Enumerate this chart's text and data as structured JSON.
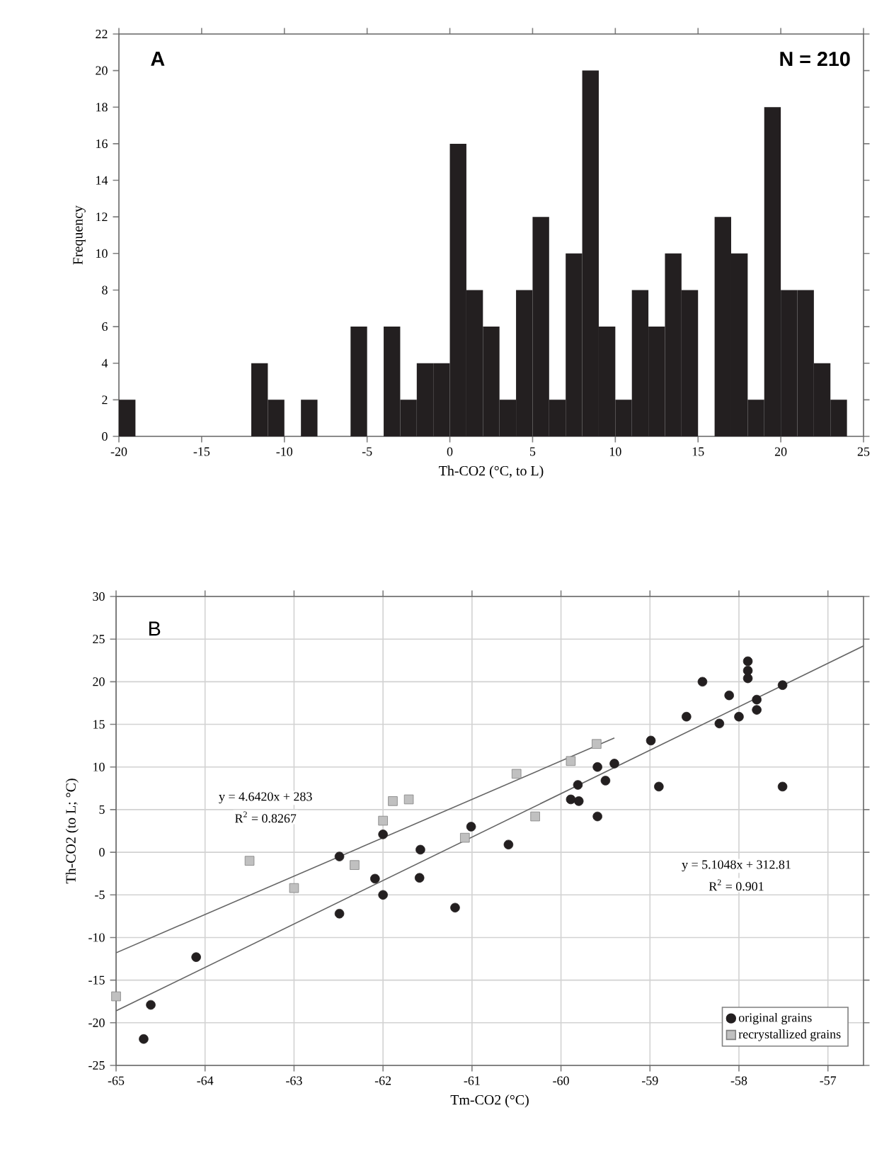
{
  "chart_data": [
    {
      "type": "histogram",
      "xlabel": "Th-CO2 (°C, to L)",
      "ylabel": "Frequency",
      "color": "#231f20",
      "bins": [
        -20,
        -19,
        -18,
        -17,
        -16,
        -15,
        -14,
        -13,
        -12,
        -11,
        -10,
        -9,
        -8,
        -7,
        -6,
        -5,
        -4,
        -3,
        -2,
        -1,
        0,
        1,
        2,
        3,
        4,
        5,
        6,
        7,
        8,
        9,
        10,
        11,
        12,
        13,
        14,
        15,
        16,
        17,
        18,
        19,
        20,
        21,
        22,
        23,
        24,
        25
      ],
      "values": [
        2,
        0,
        0,
        0,
        0,
        0,
        0,
        0,
        4,
        2,
        0,
        2,
        0,
        0,
        6,
        0,
        6,
        2,
        4,
        4,
        16,
        8,
        6,
        2,
        8,
        12,
        2,
        10,
        20,
        6,
        2,
        8,
        6,
        10,
        8,
        0,
        12,
        10,
        2,
        18,
        8,
        8,
        4,
        2,
        0
      ],
      "xlim": [
        -20,
        25
      ],
      "ylim": [
        0,
        22
      ],
      "xticks": [
        -20,
        -15,
        -10,
        -5,
        0,
        5,
        10,
        15,
        20,
        25
      ],
      "yticks": [
        0,
        2,
        4,
        6,
        8,
        10,
        12,
        14,
        16,
        18,
        20,
        22
      ],
      "annotations": [
        "A",
        "N = 210"
      ]
    },
    {
      "type": "scatter",
      "xlabel": "Tm-CO2 (°C)",
      "ylabel": "Th-CO2 (to L; °C)",
      "xlim": [
        -65,
        -56.6
      ],
      "ylim": [
        -25,
        30
      ],
      "xticks": [
        -65,
        -64,
        -63,
        -62,
        -61,
        -60,
        -59,
        -58,
        -57
      ],
      "yticks": [
        -25,
        -20,
        -15,
        -10,
        -5,
        0,
        5,
        10,
        15,
        20,
        25,
        30
      ],
      "grid": true,
      "legend": "bottom right",
      "series": [
        {
          "name": "original grains",
          "type": "scatter",
          "marker": "circle",
          "color": "#231f20",
          "x": [
            -58.41,
            -58.11,
            -57.9,
            -57.9,
            -57.9,
            -57.8,
            -57.8,
            -57.51,
            -58.59,
            -58.22,
            -58.0,
            -58.99,
            -58.9,
            -57.51,
            -59.59,
            -59.4,
            -59.5,
            -59.81,
            -59.89,
            -59.8,
            -59.59,
            -60.59,
            -61.01,
            -61.19,
            -61.58,
            -61.59,
            -62.0,
            -62.09,
            -62.0,
            -62.49,
            -62.49,
            -64.1,
            -64.61,
            -64.69
          ],
          "values": [
            20.0,
            18.4,
            22.4,
            21.3,
            20.4,
            17.9,
            16.7,
            19.6,
            15.9,
            15.1,
            15.9,
            13.1,
            7.7,
            7.7,
            10.0,
            10.4,
            8.4,
            7.9,
            6.2,
            6.0,
            4.2,
            0.9,
            3.0,
            -6.5,
            0.3,
            -3.0,
            2.1,
            -3.1,
            -5.0,
            -0.5,
            -7.2,
            -12.3,
            -17.9,
            -21.9
          ]
        },
        {
          "name": "recrystallized grains",
          "type": "scatter",
          "marker": "square",
          "color": "#c0c0c0",
          "x": [
            -63.5,
            -63.0,
            -62.32,
            -62.0,
            -61.89,
            -61.71,
            -61.08,
            -60.5,
            -60.29,
            -59.89,
            -59.6,
            -65.0
          ],
          "values": [
            -1.0,
            -4.2,
            -1.5,
            3.7,
            6.0,
            6.2,
            1.7,
            9.2,
            4.2,
            10.7,
            12.7,
            -16.9
          ]
        },
        {
          "type": "line",
          "color": "#666666",
          "x": [
            -65,
            -59.4
          ],
          "values": [
            -11.8,
            13.4
          ]
        },
        {
          "type": "line",
          "color": "#666666",
          "x": [
            -65,
            -56.6
          ],
          "values": [
            -18.6,
            24.2
          ]
        }
      ],
      "annotations": [
        "B",
        "y = 4.6420x + 283",
        "R$^{2}$ = 0.8267",
        "y = 5.1048x + 312.81",
        "R$^{2}$ = 0.901"
      ]
    }
  ]
}
